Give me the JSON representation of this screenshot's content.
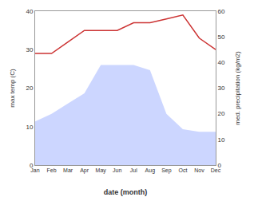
{
  "chart_data": {
    "type": "line",
    "categories": [
      "Jan",
      "Feb",
      "Mar",
      "Apr",
      "May",
      "Jun",
      "Jul",
      "Aug",
      "Sep",
      "Oct",
      "Nov",
      "Dec"
    ],
    "series": [
      {
        "type": "area",
        "axis": "y2",
        "color": "#aabbff",
        "values": [
          17,
          20,
          24,
          28,
          39,
          39,
          39,
          37,
          20,
          14,
          13,
          13
        ]
      },
      {
        "type": "line",
        "color": "#cc3333",
        "values": [
          29,
          29,
          32,
          35,
          35,
          35,
          37,
          37,
          38,
          39,
          33,
          30
        ]
      }
    ],
    "xlabel": "date (month)",
    "ylabel": "max temp (C)",
    "y2label": "med. precipitation (kg/m2)",
    "ylim": [
      0,
      40
    ],
    "yticks": [
      0,
      10,
      20,
      30,
      40
    ],
    "y2lim": [
      0,
      60
    ],
    "y2ticks": [
      0,
      10,
      20,
      30,
      40,
      50,
      60
    ],
    "grid": false
  }
}
